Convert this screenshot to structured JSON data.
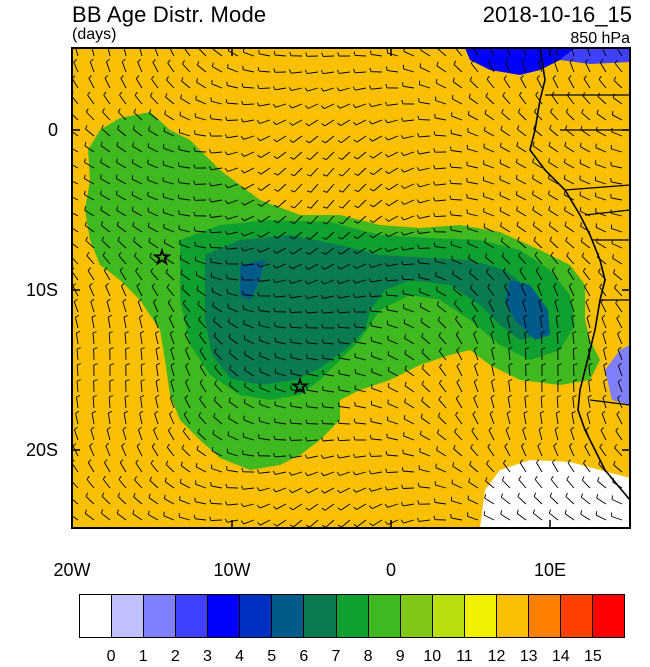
{
  "header": {
    "title": "BB Age Distr. Mode",
    "units": "(days)",
    "date": "2018-10-16_15",
    "level": "850 hPa"
  },
  "axes": {
    "lat_ticks": [
      "0",
      "10S",
      "20S"
    ],
    "lon_ticks": [
      "20W",
      "10W",
      "0",
      "10E"
    ]
  },
  "colorbar": {
    "labels": [
      "0",
      "1",
      "2",
      "3",
      "4",
      "5",
      "6",
      "7",
      "8",
      "9",
      "10",
      "11",
      "12",
      "13",
      "14",
      "15"
    ],
    "colors": [
      "#ffffff",
      "#c0c0ff",
      "#8080ff",
      "#4040ff",
      "#0000ff",
      "#0030c0",
      "#005a8a",
      "#0a7a50",
      "#10a030",
      "#40b820",
      "#80c818",
      "#b8e010",
      "#f0f000",
      "#f8c000",
      "#ff8000",
      "#ff4000",
      "#ff0000"
    ]
  },
  "map_colors": {
    "background": "#f8c000",
    "plume_light": "#40b820",
    "plume_mid": "#10a030",
    "plume_dark": "#0a7a50",
    "plume_deep": "#005a8a",
    "white_patch": "#ffffff",
    "blue_patch": "#0000ff",
    "lavender_patch": "#8080ff"
  },
  "markers": [
    {
      "name": "star",
      "lon": -14.3,
      "lat": -8.1
    },
    {
      "name": "star",
      "lon": -5.7,
      "lat": -16.0
    }
  ]
}
